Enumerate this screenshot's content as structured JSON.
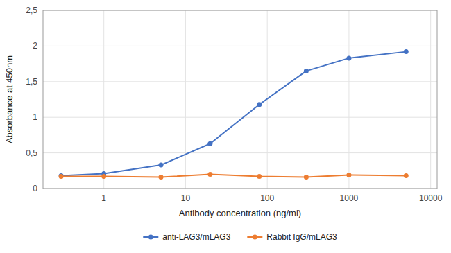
{
  "chart_data": {
    "type": "line",
    "x_label": "Antibody concentration (ng/ml)",
    "y_label": "Absorbance at 450nm",
    "x": [
      0.3,
      1,
      5,
      20,
      80,
      300,
      1000,
      5000
    ],
    "series": [
      {
        "name": "anti-LAG3/mLAG3",
        "color": "#4472C4",
        "values": [
          0.18,
          0.21,
          0.33,
          0.63,
          1.18,
          1.65,
          1.83,
          1.92
        ]
      },
      {
        "name": "Rabbit IgG/mLAG3",
        "color": "#ED7D31",
        "values": [
          0.17,
          0.17,
          0.16,
          0.2,
          0.17,
          0.16,
          0.19,
          0.18
        ]
      }
    ],
    "log": "x",
    "xlim": [
      0.18,
      12000
    ],
    "xticks": [
      1,
      10,
      100,
      1000,
      10000
    ],
    "ylim": [
      0,
      2.5
    ],
    "yticks": [
      0,
      {
        "value": 0.5,
        "label": "0,5"
      },
      1,
      {
        "value": 1.5,
        "label": "1,5"
      },
      2,
      {
        "value": 2.5,
        "label": "2,5"
      }
    ],
    "grid": true,
    "legend": "bottom",
    "marker": "circle"
  }
}
